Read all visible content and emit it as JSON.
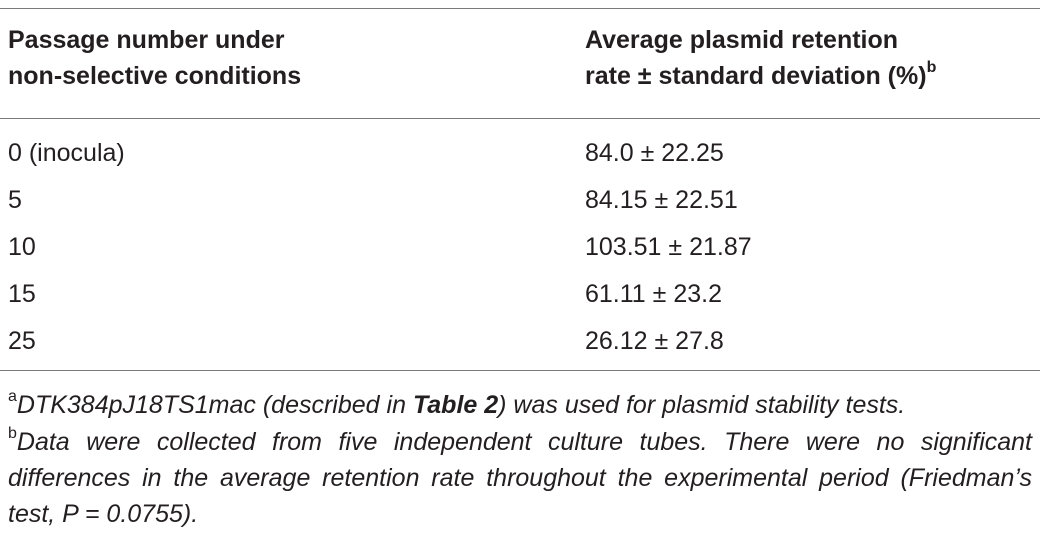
{
  "table": {
    "header": [
      {
        "lines": [
          "Passage number under",
          "non-selective conditions"
        ]
      },
      {
        "lines": [
          "Average plasmid retention",
          "rate ± standard deviation (%)"
        ],
        "note": "b"
      }
    ],
    "rows": [
      [
        "0 (inocula)",
        "84.0 ± 22.25"
      ],
      [
        "5",
        "84.15 ± 22.51"
      ],
      [
        "10",
        "103.51 ± 21.87"
      ],
      [
        "15",
        "61.11 ± 23.2"
      ],
      [
        "25",
        "26.12 ± 27.8"
      ]
    ]
  },
  "footnotes": [
    {
      "mark": "a",
      "parts": [
        "DTK384pJ18TS1mac (described in ",
        "Table 2",
        ") was used for plasmid stability tests."
      ]
    },
    {
      "mark": "b",
      "text": "Data were collected from five independent culture tubes. There were no significant differences in the average retention rate throughout the experimental period (Friedman’s test, P = 0.0755)."
    }
  ]
}
